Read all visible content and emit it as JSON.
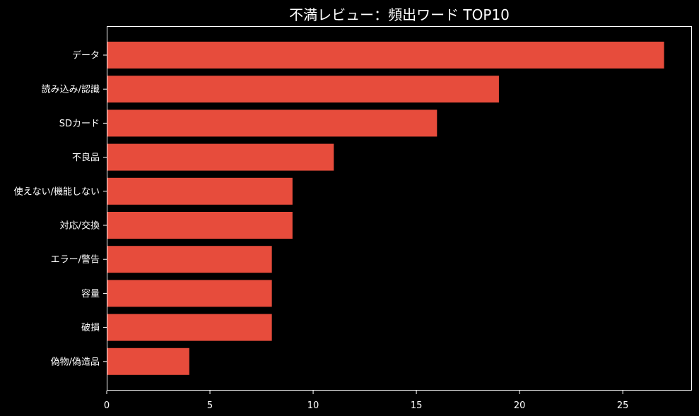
{
  "chart_data": {
    "type": "bar",
    "orientation": "horizontal",
    "title": "不満レビュー：頻出ワード TOP10",
    "xlabel": "",
    "ylabel": "",
    "categories": [
      "データ",
      "読み込み/認識",
      "SDカード",
      "不良品",
      "使えない/機能しない",
      "対応/交換",
      "エラー/警告",
      "容量",
      "破損",
      "偽物/偽造品"
    ],
    "values": [
      27,
      19,
      16,
      11,
      9,
      9,
      8,
      8,
      8,
      4
    ],
    "xlim": [
      0,
      28.35
    ],
    "xticks": [
      0,
      5,
      10,
      15,
      20,
      25
    ],
    "grid": false,
    "legend": "none",
    "colors": {
      "bar": "#e74c3c",
      "background": "#000000",
      "axis": "#ffffff",
      "text": "#ffffff"
    }
  }
}
